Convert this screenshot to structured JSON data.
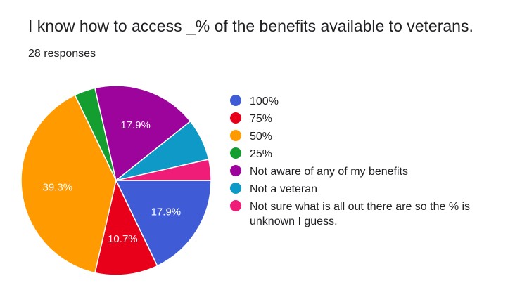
{
  "title": "I know how to access _% of the benefits available to veterans.",
  "responses": "28 responses",
  "colors": {
    "100%": "#3f5bd5",
    "75%": "#e8001a",
    "50%": "#ff9a00",
    "25%": "#159e30",
    "not_aware": "#9c049c",
    "not_veteran": "#0f99c6",
    "not_sure": "#ef1d78"
  },
  "chart_data": {
    "type": "pie",
    "total": 28,
    "slices": [
      {
        "label": "100%",
        "value": 5,
        "percent_label": "17.9%",
        "color": "#3f5bd5"
      },
      {
        "label": "75%",
        "value": 3,
        "percent_label": "10.7%",
        "color": "#e8001a"
      },
      {
        "label": "50%",
        "value": 11,
        "percent_label": "39.3%",
        "color": "#ff9a00"
      },
      {
        "label": "25%",
        "value": 1,
        "percent_label": "",
        "color": "#159e30"
      },
      {
        "label": "Not aware of any of my benefits",
        "value": 5,
        "percent_label": "17.9%",
        "color": "#9c049c"
      },
      {
        "label": "Not a veteran",
        "value": 2,
        "percent_label": "",
        "color": "#0f99c6"
      },
      {
        "label": "Not sure what is all out there are so the % is unknown I guess.",
        "value": 1,
        "percent_label": "",
        "color": "#ef1d78"
      }
    ],
    "legend_position": "right"
  }
}
